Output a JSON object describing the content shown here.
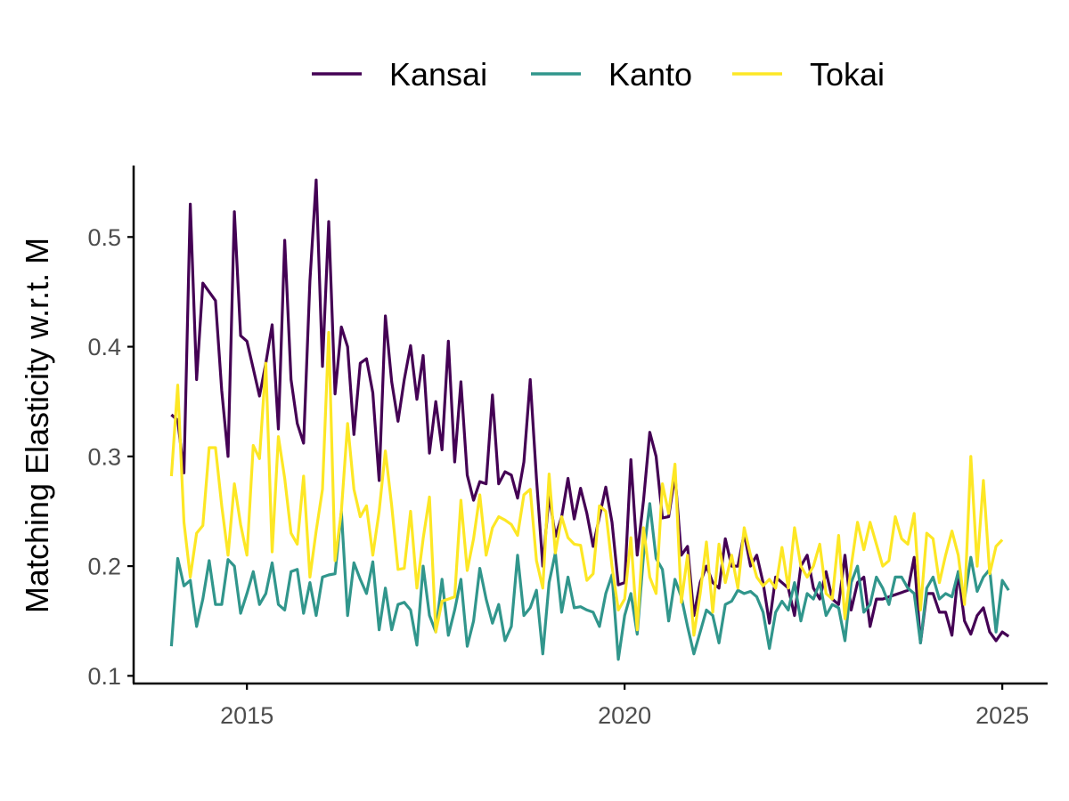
{
  "chart_data": {
    "type": "line",
    "title": "",
    "xlabel": "",
    "ylabel": "Matching Elasticity w.r.t. M",
    "xlim": [
      2013.5,
      2025.6
    ],
    "ylim": [
      0.093,
      0.57
    ],
    "x_start": 2014.0,
    "x_step_months": 1,
    "x_ticks": [
      2015,
      2020,
      2025
    ],
    "y_ticks": [
      0.1,
      0.2,
      0.3,
      0.4,
      0.5
    ],
    "x_tick_labels": [
      "2015",
      "2020",
      "2025"
    ],
    "y_tick_labels": [
      "0.1",
      "0.2",
      "0.3",
      "0.4",
      "0.5"
    ],
    "legend_position": "top",
    "grid": false,
    "series": [
      {
        "name": "Kansai",
        "color": "#440154",
        "values": [
          0.338,
          0.333,
          0.285,
          0.53,
          0.37,
          0.458,
          0.45,
          0.442,
          0.36,
          0.3,
          0.523,
          0.41,
          0.405,
          0.38,
          0.355,
          0.385,
          0.42,
          0.325,
          0.497,
          0.37,
          0.33,
          0.312,
          0.46,
          0.552,
          0.382,
          0.514,
          0.357,
          0.418,
          0.4,
          0.32,
          0.385,
          0.389,
          0.358,
          0.278,
          0.428,
          0.368,
          0.332,
          0.37,
          0.401,
          0.352,
          0.392,
          0.303,
          0.35,
          0.306,
          0.405,
          0.295,
          0.368,
          0.283,
          0.26,
          0.277,
          0.275,
          0.356,
          0.275,
          0.286,
          0.283,
          0.262,
          0.295,
          0.37,
          0.28,
          0.2,
          0.265,
          0.227,
          0.245,
          0.28,
          0.243,
          0.271,
          0.248,
          0.218,
          0.245,
          0.272,
          0.24,
          0.183,
          0.185,
          0.297,
          0.21,
          0.26,
          0.322,
          0.3,
          0.244,
          0.245,
          0.283,
          0.21,
          0.218,
          0.155,
          0.185,
          0.2,
          0.185,
          0.18,
          0.225,
          0.2,
          0.2,
          0.23,
          0.2,
          0.21,
          0.185,
          0.148,
          0.19,
          0.185,
          0.18,
          0.155,
          0.2,
          0.21,
          0.18,
          0.17,
          0.195,
          0.17,
          0.165,
          0.21,
          0.16,
          0.185,
          0.19,
          0.145,
          0.17,
          0.17,
          0.172,
          0.174,
          0.176,
          0.178,
          0.208,
          0.13,
          0.175,
          0.175,
          0.158,
          0.158,
          0.137,
          0.195,
          0.15,
          0.138,
          0.155,
          0.162,
          0.14,
          0.132,
          0.14,
          0.136
        ]
      },
      {
        "name": "Kanto",
        "color": "#31968C",
        "values": [
          0.127,
          0.207,
          0.182,
          0.187,
          0.145,
          0.17,
          0.205,
          0.165,
          0.165,
          0.206,
          0.2,
          0.157,
          0.175,
          0.195,
          0.165,
          0.175,
          0.203,
          0.165,
          0.16,
          0.195,
          0.197,
          0.157,
          0.185,
          0.155,
          0.19,
          0.192,
          0.193,
          0.25,
          0.155,
          0.203,
          0.188,
          0.175,
          0.204,
          0.142,
          0.18,
          0.142,
          0.165,
          0.167,
          0.16,
          0.128,
          0.2,
          0.155,
          0.14,
          0.188,
          0.137,
          0.16,
          0.188,
          0.127,
          0.15,
          0.198,
          0.17,
          0.148,
          0.165,
          0.132,
          0.145,
          0.21,
          0.155,
          0.162,
          0.178,
          0.12,
          0.185,
          0.212,
          0.158,
          0.19,
          0.162,
          0.163,
          0.16,
          0.158,
          0.145,
          0.175,
          0.192,
          0.115,
          0.155,
          0.175,
          0.138,
          0.21,
          0.257,
          0.207,
          0.197,
          0.15,
          0.188,
          0.172,
          0.145,
          0.12,
          0.14,
          0.16,
          0.155,
          0.13,
          0.165,
          0.168,
          0.178,
          0.175,
          0.177,
          0.172,
          0.158,
          0.125,
          0.158,
          0.168,
          0.16,
          0.185,
          0.15,
          0.175,
          0.17,
          0.185,
          0.155,
          0.165,
          0.162,
          0.132,
          0.185,
          0.2,
          0.158,
          0.165,
          0.19,
          0.18,
          0.165,
          0.19,
          0.19,
          0.18,
          0.175,
          0.13,
          0.18,
          0.19,
          0.17,
          0.175,
          0.172,
          0.195,
          0.17,
          0.208,
          0.177,
          0.19,
          0.197,
          0.14,
          0.187,
          0.178
        ]
      },
      {
        "name": "Tokai",
        "color": "#FDE725",
        "values": [
          0.282,
          0.365,
          0.24,
          0.19,
          0.23,
          0.237,
          0.308,
          0.308,
          0.255,
          0.21,
          0.275,
          0.238,
          0.21,
          0.31,
          0.298,
          0.385,
          0.213,
          0.318,
          0.28,
          0.23,
          0.22,
          0.282,
          0.19,
          0.232,
          0.27,
          0.413,
          0.205,
          0.25,
          0.33,
          0.27,
          0.245,
          0.255,
          0.21,
          0.25,
          0.305,
          0.255,
          0.197,
          0.198,
          0.25,
          0.18,
          0.225,
          0.263,
          0.14,
          0.168,
          0.17,
          0.172,
          0.26,
          0.196,
          0.225,
          0.265,
          0.21,
          0.235,
          0.245,
          0.242,
          0.238,
          0.228,
          0.265,
          0.27,
          0.205,
          0.18,
          0.284,
          0.212,
          0.245,
          0.226,
          0.22,
          0.219,
          0.187,
          0.193,
          0.255,
          0.25,
          0.2,
          0.16,
          0.17,
          0.226,
          0.142,
          0.235,
          0.19,
          0.175,
          0.275,
          0.248,
          0.293,
          0.167,
          0.21,
          0.137,
          0.175,
          0.222,
          0.158,
          0.22,
          0.185,
          0.21,
          0.18,
          0.235,
          0.21,
          0.19,
          0.182,
          0.188,
          0.18,
          0.217,
          0.18,
          0.235,
          0.2,
          0.19,
          0.2,
          0.22,
          0.175,
          0.17,
          0.228,
          0.152,
          0.2,
          0.24,
          0.215,
          0.24,
          0.22,
          0.2,
          0.205,
          0.245,
          0.225,
          0.22,
          0.248,
          0.16,
          0.23,
          0.225,
          0.185,
          0.21,
          0.232,
          0.21,
          0.165,
          0.3,
          0.2,
          0.278,
          0.193,
          0.218,
          0.224
        ]
      }
    ]
  }
}
